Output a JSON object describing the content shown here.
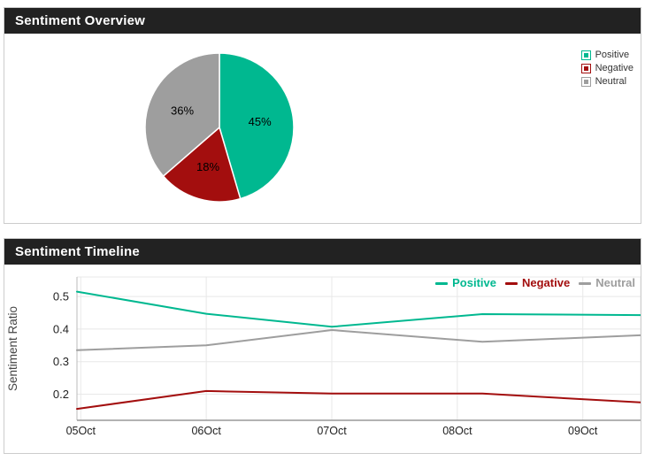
{
  "colors": {
    "positive": "#00b890",
    "negative": "#a30e0e",
    "neutral": "#9e9e9e",
    "header_bg": "#222222",
    "header_text": "#ffffff",
    "panel_border": "#cccccc",
    "grid_line": "#e8e8e8",
    "axis_line": "#999999",
    "tick_text": "#222222",
    "axis_title_text": "#444444"
  },
  "overview": {
    "title": "Sentiment Overview"
  },
  "timeline": {
    "title": "Sentiment Timeline"
  },
  "chart_data": [
    {
      "type": "pie",
      "title": "Sentiment Overview",
      "legend_position": "right",
      "start_angle": "top",
      "direction": "clockwise",
      "slices": [
        {
          "label": "Positive",
          "value": 45,
          "display": "45%",
          "color": "#00b890"
        },
        {
          "label": "Negative",
          "value": 18,
          "display": "18%",
          "color": "#a30e0e"
        },
        {
          "label": "Neutral",
          "value": 36,
          "display": "36%",
          "color": "#9e9e9e"
        }
      ]
    },
    {
      "type": "line",
      "title": "Sentiment Timeline",
      "xlabel": "",
      "ylabel": "Sentiment Ratio",
      "ylim": [
        0.12,
        0.56
      ],
      "y_ticks": [
        0.2,
        0.3,
        0.4,
        0.5
      ],
      "xlim": [
        4.97,
        9.46
      ],
      "x_ticks": [
        {
          "label": "05Oct",
          "x": 5
        },
        {
          "label": "06Oct",
          "x": 6
        },
        {
          "label": "07Oct",
          "x": 7
        },
        {
          "label": "08Oct",
          "x": 8
        },
        {
          "label": "09Oct",
          "x": 9
        }
      ],
      "grid": true,
      "legend_position": "top-right",
      "series": [
        {
          "name": "Positive",
          "color": "#00b890",
          "points": [
            [
              4.97,
              0.515
            ],
            [
              6,
              0.447
            ],
            [
              7,
              0.407
            ],
            [
              8.2,
              0.446
            ],
            [
              9.46,
              0.443
            ]
          ]
        },
        {
          "name": "Negative",
          "color": "#a30e0e",
          "points": [
            [
              4.97,
              0.155
            ],
            [
              6,
              0.21
            ],
            [
              7,
              0.202
            ],
            [
              8.2,
              0.202
            ],
            [
              9.46,
              0.175
            ]
          ]
        },
        {
          "name": "Neutral",
          "color": "#9e9e9e",
          "points": [
            [
              4.97,
              0.335
            ],
            [
              6,
              0.35
            ],
            [
              7,
              0.397
            ],
            [
              8.2,
              0.361
            ],
            [
              9.46,
              0.381
            ]
          ]
        }
      ]
    }
  ]
}
